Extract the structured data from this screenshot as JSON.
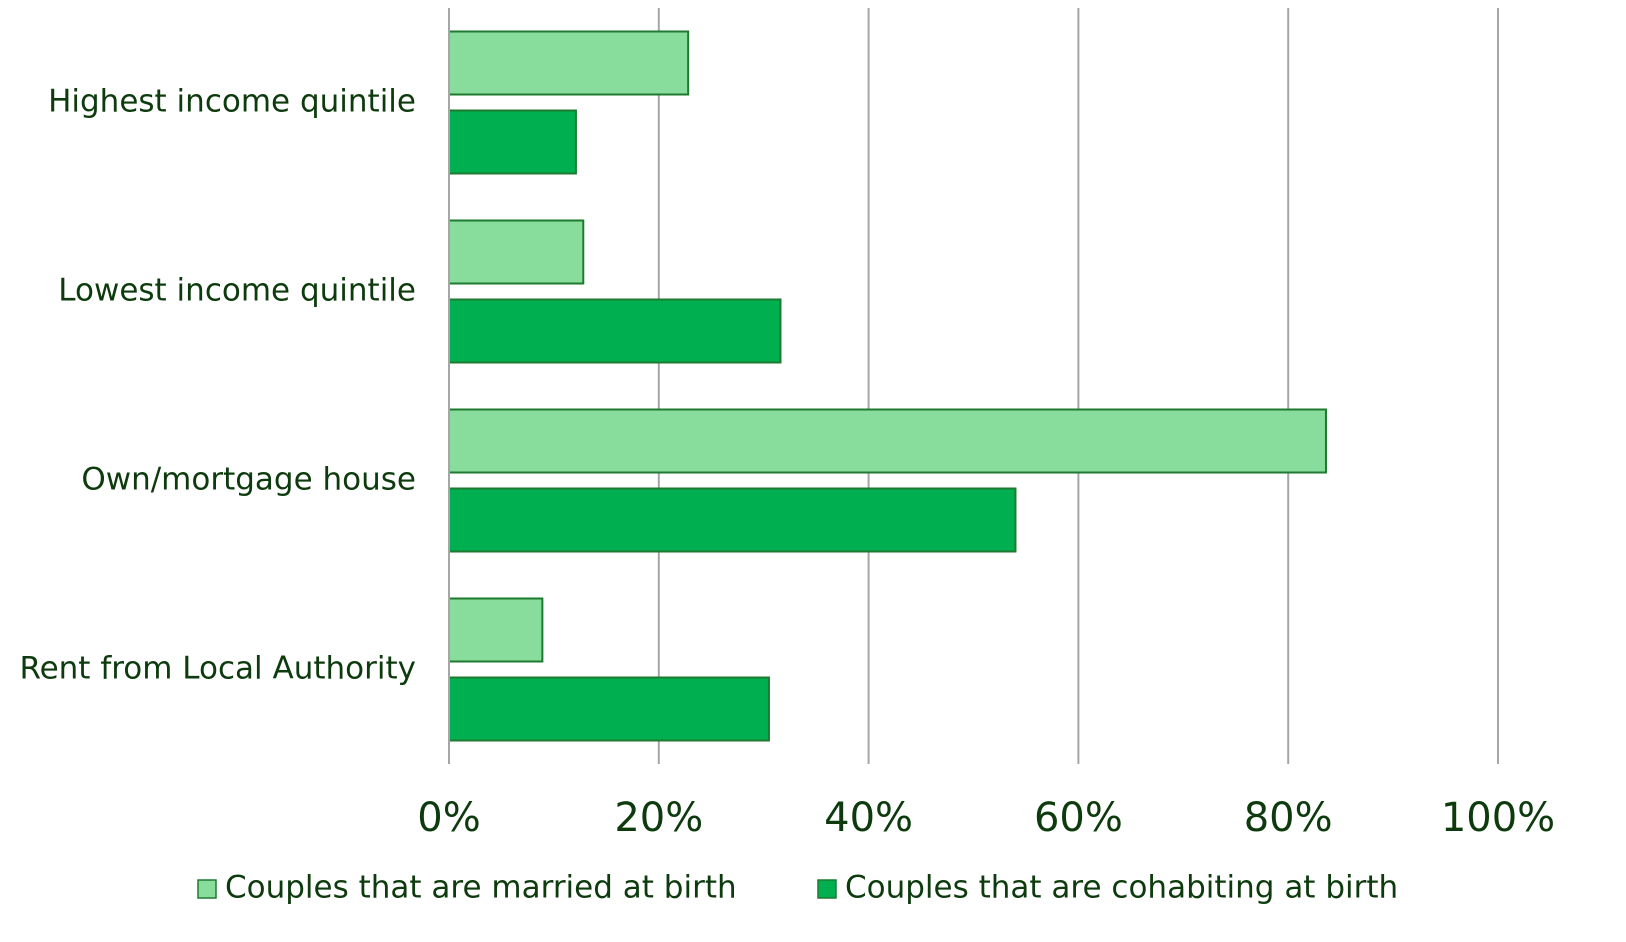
{
  "chart_data": {
    "type": "bar",
    "orientation": "horizontal",
    "title": "",
    "xlabel": "",
    "ylabel": "",
    "xlim": [
      0,
      100
    ],
    "x_ticks": [
      0,
      20,
      40,
      60,
      80,
      100
    ],
    "x_tick_labels": [
      "0%",
      "20%",
      "40%",
      "60%",
      "80%",
      "100%"
    ],
    "grid": "vertical",
    "legend_position": "bottom",
    "categories": [
      "Highest income quintile",
      "Lowest income quintile",
      "Own/mortgage house",
      "Rent from Local Authority"
    ],
    "series": [
      {
        "name": "Couples that are married at birth",
        "color": "#88dc9c",
        "values": [
          22.8,
          12.8,
          83.6,
          8.9
        ]
      },
      {
        "name": "Couples that are cohabiting at birth",
        "color": "#00b050",
        "values": [
          12.1,
          31.6,
          54.0,
          30.5
        ]
      }
    ],
    "bar_stroke_color": "#1e7a2e",
    "grid_color": "#a6a6a6",
    "text_color": "#0d3b0d"
  }
}
